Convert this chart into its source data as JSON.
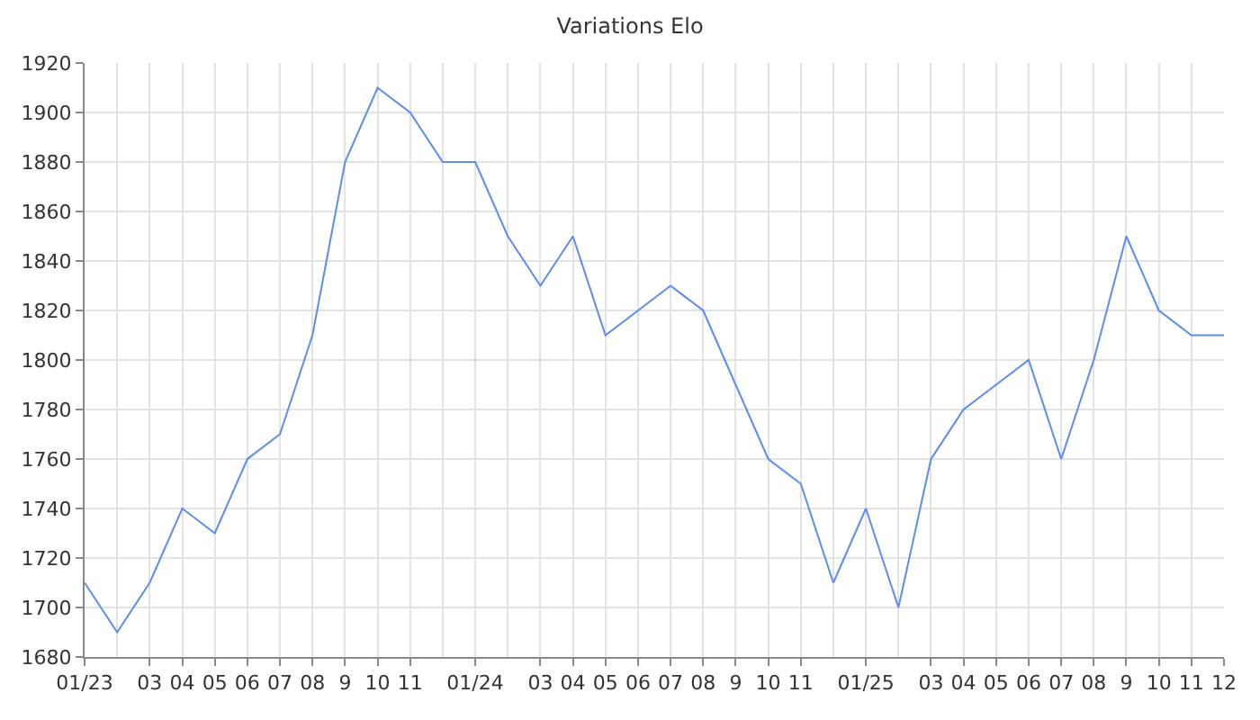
{
  "chart_data": {
    "type": "line",
    "title": "Variations Elo",
    "categories": [
      "01/23",
      null,
      "03",
      "04",
      "05",
      "06",
      "07",
      "08",
      "9",
      "10",
      "11",
      null,
      "01/24",
      null,
      "03",
      "04",
      "05",
      "06",
      "07",
      "08",
      "9",
      "10",
      "11",
      null,
      "01/25",
      null,
      "03",
      "04",
      "05",
      "06",
      "07",
      "08",
      "9",
      "10",
      "11",
      "12"
    ],
    "series": [
      {
        "color": "#5b8def",
        "values": [
          1710,
          1690,
          1710,
          1740,
          1730,
          1760,
          1770,
          1810,
          1880,
          1910,
          1900,
          1880,
          1880,
          1850,
          1830,
          1850,
          1810,
          1820,
          1830,
          1820,
          1790,
          1760,
          1750,
          1710,
          1740,
          1700,
          1760,
          1780,
          1790,
          1800,
          1760,
          1800,
          1850,
          1820,
          1810,
          1810
        ]
      }
    ],
    "ylim": [
      1680,
      1920
    ],
    "yticks": [
      1680,
      1700,
      1720,
      1740,
      1760,
      1780,
      1800,
      1820,
      1840,
      1860,
      1880,
      1900,
      1920
    ],
    "grid": true,
    "marker": "none",
    "line_style": "solid"
  }
}
